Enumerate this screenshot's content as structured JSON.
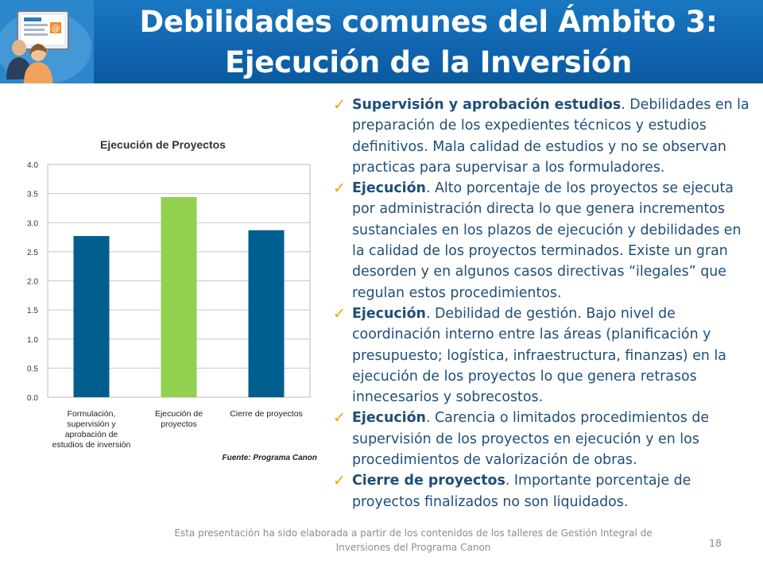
{
  "slide": {
    "title_line1": "Debilidades comunes del Ámbito 3:",
    "title_line2": "Ejecución de la Inversión",
    "page_number": "18",
    "footer_line1": "Esta presentación ha sido elaborada a partir de los contenidos de los talleres de Gestión Integral de",
    "footer_line2": "Inversiones del Programa Canon"
  },
  "chart_data": {
    "type": "bar",
    "title": "Ejecución de Proyectos",
    "categories": [
      [
        "Formulación,",
        "supervisión y",
        "aprobación de",
        "estudios de inversión"
      ],
      [
        "Ejecución de",
        "proyectos"
      ],
      [
        "Cierre de proyectos"
      ]
    ],
    "values": [
      2.77,
      3.44,
      2.87
    ],
    "bar_colors": [
      "#005e8e",
      "#92d050",
      "#005e8e"
    ],
    "ylim": [
      0,
      4
    ],
    "yticks": [
      "0.0",
      "0.5",
      "1.0",
      "1.5",
      "2.0",
      "2.5",
      "3.0",
      "3.5",
      "4.0"
    ],
    "grid": true,
    "source": "Fuente: Programa Canon"
  },
  "bullets": [
    {
      "lead": "Supervisión y aprobación estudios",
      "text": ". Debilidades en la preparación de los expedientes técnicos y estudios definitivos. Mala calidad de estudios y no se observan practicas para supervisar a los formuladores."
    },
    {
      "lead": "Ejecución",
      "text": ". Alto porcentaje de los proyectos se ejecuta por administración directa lo que genera incrementos sustanciales en los plazos de ejecución y debilidades en la calidad de los proyectos terminados. Existe un gran desorden y en algunos casos directivas “ilegales” que regulan estos procedimientos."
    },
    {
      "lead": " Ejecución",
      "text": ". Debilidad de gestión. Bajo nivel de coordinación interno entre las áreas (planificación y presupuesto; logística, infraestructura, finanzas) en la ejecución de los proyectos lo que genera retrasos innecesarios y sobrecostos."
    },
    {
      "lead": "Ejecución",
      "text": ". Carencia o limitados procedimientos de supervisión de los proyectos en ejecución y en los procedimientos de valorización de obras."
    },
    {
      "lead": "Cierre de proyectos",
      "text": ". Importante porcentaje de proyectos finalizados no son liquidados."
    }
  ],
  "colors": {
    "header_blue": "#1a78c2",
    "bullet_text": "#1f4e79",
    "checkmark": "#f0a500"
  },
  "icons": {
    "header_logo": "computer-users-logo-icon",
    "bullet": "checkmark-icon"
  }
}
